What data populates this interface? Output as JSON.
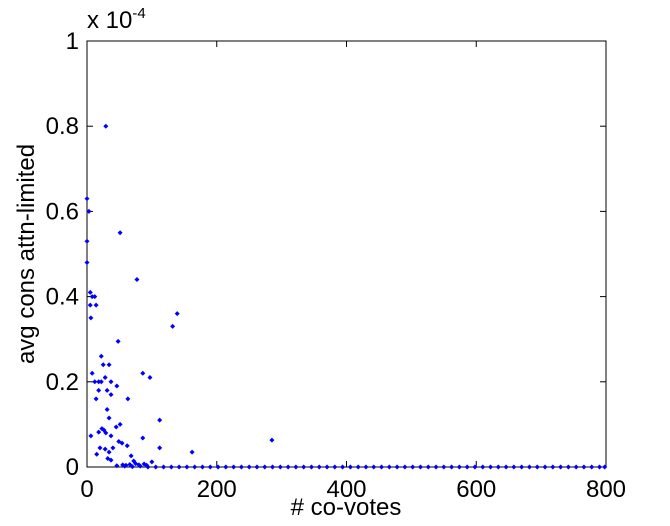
{
  "chart_data": {
    "type": "scatter",
    "x_label": "# co-votes",
    "y_label": "avg cons attn-limited",
    "y_scale_label": {
      "base": "x 10",
      "exponent": "-4"
    },
    "xlim": [
      0,
      800
    ],
    "ylim": [
      0,
      1
    ],
    "xticks": [
      0,
      200,
      400,
      600,
      800
    ],
    "yticks": [
      0,
      0.2,
      0.4,
      0.6,
      0.8,
      1
    ],
    "grid": false,
    "series": [
      {
        "color": "#0000ff",
        "x": [
          29,
          0,
          3,
          51,
          77,
          139,
          132,
          0,
          0,
          5,
          8,
          12,
          5,
          14,
          6,
          48,
          8,
          12,
          18,
          25,
          22,
          22,
          28,
          14,
          18,
          31,
          37,
          34,
          46,
          37,
          31,
          86,
          97,
          63,
          112,
          34,
          6,
          18,
          26,
          23,
          29,
          37,
          45,
          51,
          40,
          49,
          54,
          20,
          15,
          86,
          112,
          162,
          285,
          34,
          28,
          32,
          37,
          62,
          68,
          100,
          72,
          55,
          60,
          66,
          75,
          80,
          88,
          92,
          46,
          58,
          70,
          82,
          94,
          106,
          118,
          130,
          142,
          154,
          166,
          178,
          190,
          202,
          214,
          226,
          238,
          250,
          262,
          274,
          286,
          298,
          310,
          322,
          334,
          346,
          358,
          370,
          382,
          394,
          406,
          418,
          430,
          442,
          454,
          466,
          478,
          490,
          502,
          514,
          526,
          538,
          550,
          562,
          574,
          586,
          598,
          610,
          622,
          634,
          646,
          658,
          670,
          682,
          694,
          706,
          718,
          730,
          742,
          754,
          766,
          778,
          790,
          798
        ],
        "values": [
          0.8,
          0.63,
          0.6,
          0.55,
          0.44,
          0.36,
          0.33,
          0.53,
          0.48,
          0.41,
          0.4,
          0.4,
          0.38,
          0.38,
          0.35,
          0.295,
          0.22,
          0.2,
          0.2,
          0.24,
          0.2,
          0.26,
          0.21,
          0.16,
          0.18,
          0.18,
          0.17,
          0.24,
          0.19,
          0.2,
          0.135,
          0.22,
          0.21,
          0.16,
          0.11,
          0.115,
          0.073,
          0.082,
          0.087,
          0.09,
          0.08,
          0.073,
          0.094,
          0.1,
          0.045,
          0.06,
          0.056,
          0.045,
          0.03,
          0.068,
          0.045,
          0.035,
          0.063,
          0.035,
          0.042,
          0.02,
          0.016,
          0.05,
          0.026,
          0.012,
          0.014,
          0.005,
          0.004,
          0.006,
          0.008,
          0.005,
          0.007,
          0.004,
          0.003,
          0.002,
          0.001,
          0.002,
          0,
          0,
          0,
          0,
          0,
          0,
          0,
          0,
          0,
          0,
          0,
          0,
          0,
          0,
          0,
          0,
          0,
          0,
          0,
          0,
          0,
          0,
          0,
          0,
          0,
          0,
          0,
          0,
          0,
          0,
          0,
          0,
          0,
          0,
          0,
          0,
          0,
          0,
          0,
          0,
          0,
          0,
          0,
          0,
          0,
          0,
          0,
          0,
          0,
          0,
          0,
          0,
          0,
          0,
          0,
          0,
          0,
          0,
          0,
          0
        ]
      }
    ]
  }
}
